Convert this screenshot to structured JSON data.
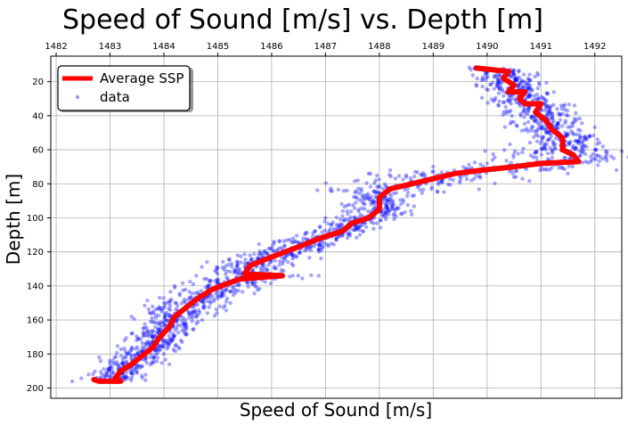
{
  "chart_data": {
    "type": "scatter",
    "title": "Speed of Sound [m/s] vs. Depth [m]",
    "xlabel": "Speed of Sound [m/s]",
    "ylabel": "Depth [m]",
    "x_axis_position": "top",
    "y_inverted": true,
    "xlim": [
      1481.9,
      1492.5
    ],
    "ylim": [
      206,
      5
    ],
    "xticks": [
      1482,
      1483,
      1484,
      1485,
      1486,
      1487,
      1488,
      1489,
      1490,
      1491,
      1492
    ],
    "yticks": [
      20,
      40,
      60,
      80,
      100,
      120,
      140,
      160,
      180,
      200
    ],
    "grid": true,
    "legend": {
      "position": "top-left",
      "entries": [
        "Average SSP",
        "data"
      ]
    },
    "colors": {
      "average": "#ff0000",
      "data": "#0000ff"
    },
    "series": [
      {
        "name": "Average SSP",
        "kind": "line",
        "points": [
          [
            1489.8,
            12
          ],
          [
            1490.1,
            13
          ],
          [
            1490.4,
            14
          ],
          [
            1490.3,
            18
          ],
          [
            1490.5,
            22
          ],
          [
            1490.4,
            26
          ],
          [
            1490.7,
            26
          ],
          [
            1490.6,
            30
          ],
          [
            1490.7,
            33
          ],
          [
            1491.0,
            33
          ],
          [
            1490.9,
            38
          ],
          [
            1491.1,
            43
          ],
          [
            1491.2,
            48
          ],
          [
            1491.4,
            53
          ],
          [
            1491.4,
            60
          ],
          [
            1491.6,
            63
          ],
          [
            1491.7,
            67
          ],
          [
            1491.0,
            68
          ],
          [
            1490.5,
            70
          ],
          [
            1489.9,
            72
          ],
          [
            1489.4,
            74
          ],
          [
            1489.0,
            77
          ],
          [
            1488.6,
            80
          ],
          [
            1488.2,
            83
          ],
          [
            1488.0,
            88
          ],
          [
            1488.0,
            95
          ],
          [
            1487.8,
            100
          ],
          [
            1487.5,
            103
          ],
          [
            1487.3,
            108
          ],
          [
            1486.9,
            112
          ],
          [
            1486.5,
            117
          ],
          [
            1486.0,
            123
          ],
          [
            1485.6,
            128
          ],
          [
            1485.5,
            133
          ],
          [
            1486.2,
            134
          ],
          [
            1485.4,
            136
          ],
          [
            1484.9,
            142
          ],
          [
            1484.6,
            148
          ],
          [
            1484.4,
            153
          ],
          [
            1484.2,
            158
          ],
          [
            1484.1,
            164
          ],
          [
            1483.9,
            171
          ],
          [
            1483.8,
            176
          ],
          [
            1483.6,
            181
          ],
          [
            1483.4,
            186
          ],
          [
            1483.2,
            190
          ],
          [
            1483.1,
            194
          ],
          [
            1483.2,
            196
          ],
          [
            1482.8,
            196
          ],
          [
            1482.7,
            195
          ]
        ]
      },
      {
        "name": "data",
        "kind": "scatter",
        "description_of_spread": "profiles scattered around the average",
        "points": [
          [
            1489.7,
            13
          ],
          [
            1490.0,
            14
          ],
          [
            1490.5,
            18
          ],
          [
            1490.8,
            24
          ],
          [
            1490.2,
            20
          ],
          [
            1490.9,
            30
          ],
          [
            1491.3,
            36
          ],
          [
            1491.6,
            44
          ],
          [
            1491.9,
            52
          ],
          [
            1491.2,
            46
          ],
          [
            1490.6,
            28
          ],
          [
            1491.5,
            40
          ],
          [
            1492.0,
            60
          ],
          [
            1492.2,
            64
          ],
          [
            1492.4,
            72
          ],
          [
            1491.8,
            58
          ],
          [
            1491.0,
            70
          ],
          [
            1490.0,
            68
          ],
          [
            1489.0,
            70
          ],
          [
            1488.2,
            72
          ],
          [
            1487.8,
            74
          ],
          [
            1488.5,
            76
          ],
          [
            1489.5,
            78
          ],
          [
            1490.5,
            76
          ],
          [
            1491.5,
            74
          ],
          [
            1487.6,
            78
          ],
          [
            1487.4,
            84
          ],
          [
            1487.8,
            88
          ],
          [
            1488.4,
            92
          ],
          [
            1488.6,
            98
          ],
          [
            1487.4,
            96
          ],
          [
            1487.0,
            100
          ],
          [
            1487.6,
            106
          ],
          [
            1487.2,
            112
          ],
          [
            1486.8,
            108
          ],
          [
            1486.0,
            118
          ],
          [
            1485.6,
            122
          ],
          [
            1484.8,
            126
          ],
          [
            1485.4,
            130
          ],
          [
            1486.4,
            128
          ],
          [
            1484.6,
            134
          ],
          [
            1484.2,
            140
          ],
          [
            1484.8,
            146
          ],
          [
            1484.0,
            150
          ],
          [
            1483.8,
            156
          ],
          [
            1484.6,
            158
          ],
          [
            1484.4,
            166
          ],
          [
            1483.4,
            168
          ],
          [
            1483.6,
            176
          ],
          [
            1484.0,
            180
          ],
          [
            1482.8,
            182
          ],
          [
            1483.0,
            188
          ],
          [
            1482.6,
            192
          ],
          [
            1482.3,
            196
          ],
          [
            1483.6,
            194
          ],
          [
            1484.1,
            186
          ],
          [
            1485.2,
            140
          ],
          [
            1483.4,
            158
          ],
          [
            1486.2,
            120
          ],
          [
            1488.0,
            90
          ]
        ]
      }
    ]
  }
}
